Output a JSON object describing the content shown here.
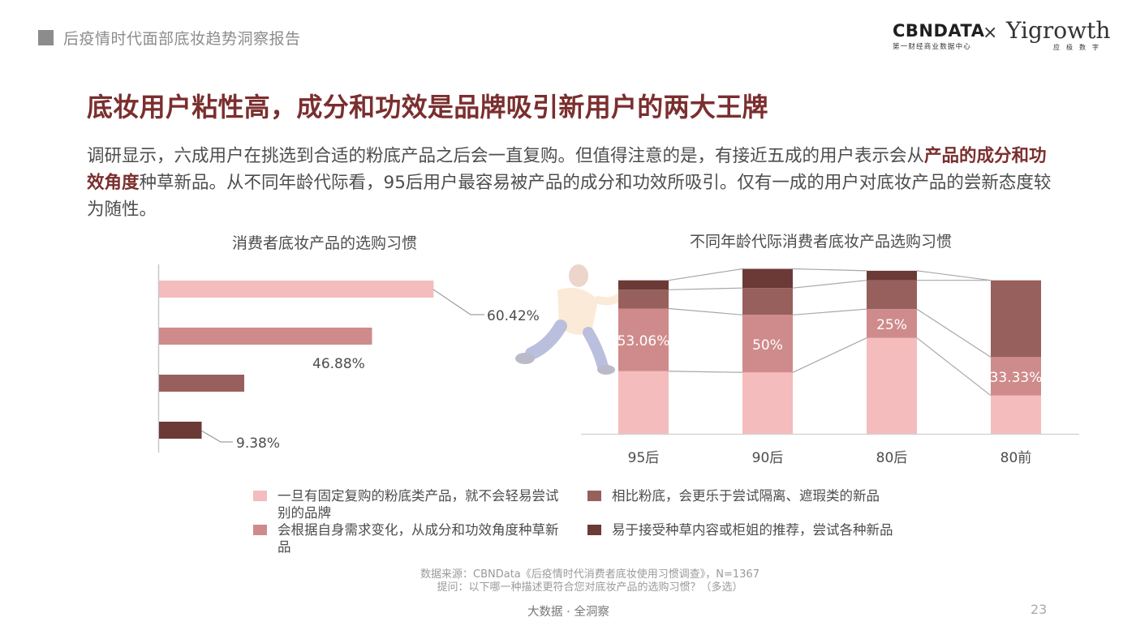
{
  "header": {
    "report_title": "后疫情时代面部底妆趋势洞察报告",
    "logo_cbn": "CBNDATA",
    "logo_cbn_sub": "第一财经商业数据中心",
    "logo_x": "×",
    "logo_yi": "Yigrowth",
    "logo_yi_sub": "应极数字"
  },
  "main": {
    "title": "底妆用户粘性高，成分和功效是品牌吸引新用户的两大王牌",
    "intro_a": "调研显示，六成用户在挑选到合适的粉底产品之后会一直复购。但值得注意的是，有接近五成的用户表示会从",
    "intro_bold": "产品的成分和功效角度",
    "intro_b": "种草新品。从不同年龄代际看，95后用户最容易被产品的成分和功效所吸引。仅有一成的用户对底妆产品的尝新态度较为随性。"
  },
  "colors": {
    "c1": "#f4bcbc",
    "c2": "#cf8b8b",
    "c3": "#98605d",
    "c4": "#6b3a37",
    "title": "#7b2e2e",
    "connector": "#a8a8a8"
  },
  "chart_data": [
    {
      "type": "bar",
      "orientation": "horizontal",
      "title": "消费者底妆产品的选购习惯",
      "categories": [
        "一旦有固定复购的粉底类产品，就不会轻易尝试别的品牌",
        "会根据自身需求变化，从成分和功效角度种草新品",
        "相比粉底，会更乐于尝试隔离、遮瑕类的新品",
        "易于接受种草内容或柜姐的推荐，尝试各种新品"
      ],
      "values": [
        60.42,
        46.88,
        18.75,
        9.38
      ],
      "data_labels": [
        "60.42%",
        "46.88%",
        "",
        "9.38%"
      ],
      "xlim": [
        0,
        100
      ]
    },
    {
      "type": "bar",
      "stacked": true,
      "title": "不同年龄代际消费者底妆产品选购习惯",
      "categories": [
        "95后",
        "90后",
        "80后",
        "80前"
      ],
      "series": [
        {
          "name": "一旦有固定复购的粉底类产品，就不会轻易尝试别的品牌",
          "values": [
            40.82,
            40,
            62.5,
            25
          ]
        },
        {
          "name": "会根据自身需求变化，从成分和功效角度种草新品",
          "values": [
            40.8,
            37.5,
            18.75,
            25
          ]
        },
        {
          "name": "相比粉底，会更乐于尝试隔离、遮瑕类的新品",
          "values": [
            12.25,
            17.5,
            18.75,
            50
          ]
        },
        {
          "name": "易于接受种草内容或柜姐的推荐，尝试各种新品",
          "values": [
            6.13,
            12.5,
            6.25,
            0
          ]
        }
      ],
      "data_labels": [
        "53.06%",
        "50%",
        "25%",
        "33.33%"
      ],
      "ylim": [
        0,
        110
      ],
      "legend": [
        "一旦有固定复购的粉底类产品，就不会轻易尝试别的品牌",
        "相比粉底，会更乐于尝试隔离、遮瑕类的新品",
        "会根据自身需求变化，从成分和功效角度种草新品",
        "易于接受种草内容或柜姐的推荐，尝试各种新品"
      ],
      "legend_position": "bottom"
    }
  ],
  "footer": {
    "source_line1": "数据来源：CBNData《后疫情时代消费者底妆使用习惯调查》，N=1367",
    "source_line2": "提问：以下哪一种描述更符合您对底妆产品的选购习惯？（多选）",
    "slogan": "大数据 · 全洞察",
    "page_number": "23"
  }
}
